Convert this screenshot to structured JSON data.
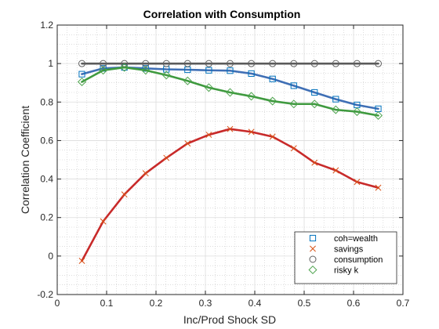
{
  "chart_data": {
    "type": "line",
    "title": "Correlation with Consumption",
    "xlabel": "Inc/Prod Shock SD",
    "ylabel": "Correlation Coefficient",
    "xlim": [
      0,
      0.7
    ],
    "ylim": [
      -0.2,
      1.2
    ],
    "x_ticks": [
      "0",
      "0.1",
      "0.2",
      "0.3",
      "0.4",
      "0.5",
      "0.6",
      "0.7"
    ],
    "y_ticks": [
      "-0.2",
      "0",
      "0.2",
      "0.4",
      "0.6",
      "0.8",
      "1",
      "1.2"
    ],
    "grid": true,
    "minor_grid": true,
    "legend_position": "bottom-right",
    "x": [
      0.05,
      0.093,
      0.136,
      0.179,
      0.221,
      0.264,
      0.307,
      0.35,
      0.393,
      0.436,
      0.479,
      0.521,
      0.564,
      0.607,
      0.65
    ],
    "series": [
      {
        "name": "coh=wealth",
        "marker": "square",
        "color": "#0072BD",
        "line_color": "#3F6FB5",
        "values": [
          0.945,
          0.975,
          0.98,
          0.975,
          0.97,
          0.968,
          0.965,
          0.963,
          0.948,
          0.92,
          0.885,
          0.85,
          0.815,
          0.785,
          0.765
        ]
      },
      {
        "name": "savings",
        "marker": "x",
        "color": "#D95319",
        "line_color": "#C82A2A",
        "values": [
          -0.025,
          0.18,
          0.32,
          0.43,
          0.51,
          0.585,
          0.63,
          0.66,
          0.645,
          0.62,
          0.56,
          0.485,
          0.445,
          0.385,
          0.355
        ]
      },
      {
        "name": "consumption",
        "marker": "circle",
        "color": "#606060",
        "line_color": "#5A5A5A",
        "values": [
          1,
          1,
          1,
          1,
          1,
          1,
          1,
          1,
          1,
          1,
          1,
          1,
          1,
          1,
          1
        ]
      },
      {
        "name": "risky k",
        "marker": "diamond",
        "color": "#4DA34D",
        "line_color": "#3F9A3F",
        "values": [
          0.905,
          0.965,
          0.98,
          0.965,
          0.94,
          0.91,
          0.875,
          0.85,
          0.83,
          0.805,
          0.79,
          0.79,
          0.76,
          0.75,
          0.73
        ]
      }
    ]
  }
}
